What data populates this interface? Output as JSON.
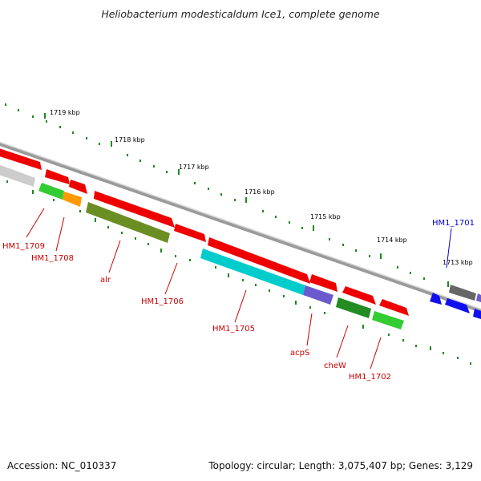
{
  "title": "Heliobacterium modesticaldum Ice1, complete genome",
  "ticks": [
    "1719 kbp",
    "1718 kbp",
    "1717 kbp",
    "1716 kbp",
    "1715 kbp",
    "1714 kbp",
    "1713 kbp"
  ],
  "genes": [
    {
      "label": "HM1_1709",
      "color": "#cc0000"
    },
    {
      "label": "HM1_1708",
      "color": "#cc0000"
    },
    {
      "label": "alr",
      "color": "#cc0000"
    },
    {
      "label": "HM1_1706",
      "color": "#cc0000"
    },
    {
      "label": "HM1_1705",
      "color": "#cc0000"
    },
    {
      "label": "acpS",
      "color": "#cc0000"
    },
    {
      "label": "cheW",
      "color": "#cc0000"
    },
    {
      "label": "HM1_1702",
      "color": "#cc0000"
    },
    {
      "label": "HM1_1701",
      "color": "#0000cc"
    }
  ],
  "colors": {
    "forward_cds": "#ee0000",
    "reverse_cds": "#1010ee",
    "backbone": "#808080",
    "tick": "#1a8a1a",
    "cog_green": "#33cc33",
    "cog_orange": "#ff9900",
    "cog_olive": "#6b8e23",
    "cog_cyan": "#00cccc",
    "cog_slate": "#6a5acd",
    "cog_darkgreen": "#228b22",
    "cog_grey": "#666666",
    "cog_lightgrey": "#cccccc"
  },
  "footer": {
    "accession": "Accession: NC_010337",
    "stats": "Topology: circular; Length: 3,075,407 bp; Genes: 3,129"
  }
}
